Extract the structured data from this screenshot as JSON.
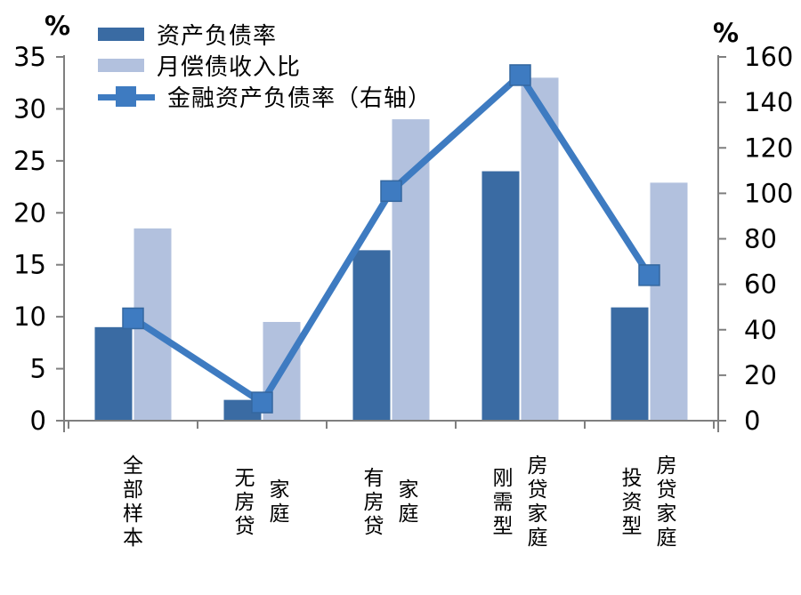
{
  "chart_data": {
    "type": "bar+line",
    "categories": [
      "全部样本",
      "无房贷家庭",
      "有房贷家庭",
      "刚需型房贷家庭",
      "投资型房贷家庭"
    ],
    "category_label_lines": [
      [
        "全部样本"
      ],
      [
        "无房贷",
        "家庭"
      ],
      [
        "有房贷",
        "家庭"
      ],
      [
        "刚需型",
        "房贷家庭"
      ],
      [
        "投资型",
        "房贷家庭"
      ]
    ],
    "series": [
      {
        "name": "资产负债率",
        "type": "bar",
        "axis": "left",
        "color": "#3A6BA3",
        "values": [
          9,
          2,
          16.4,
          24,
          10.9
        ]
      },
      {
        "name": "月偿债收入比",
        "type": "bar",
        "axis": "left",
        "color": "#B2C1DE",
        "values": [
          18.5,
          9.5,
          29,
          33,
          22.9
        ]
      },
      {
        "name": "金融资产负债率（右轴）",
        "type": "line",
        "axis": "right",
        "color": "#3E7BC1",
        "marker": "square",
        "marker_border_color": "#34679F",
        "values": [
          45,
          8,
          101,
          152,
          64
        ]
      }
    ],
    "left_axis": {
      "unit": "%",
      "min": 0,
      "max": 35,
      "step": 5,
      "ticks": [
        0,
        5,
        10,
        15,
        20,
        25,
        30,
        35
      ]
    },
    "right_axis": {
      "unit": "%",
      "min": 0,
      "max": 160,
      "step": 20,
      "ticks": [
        0,
        20,
        40,
        60,
        80,
        100,
        120,
        140,
        160
      ]
    },
    "title": "",
    "grid": false,
    "legend_position": "top-left",
    "axis_color": "#7F7F7F",
    "text_color": "#000000"
  }
}
